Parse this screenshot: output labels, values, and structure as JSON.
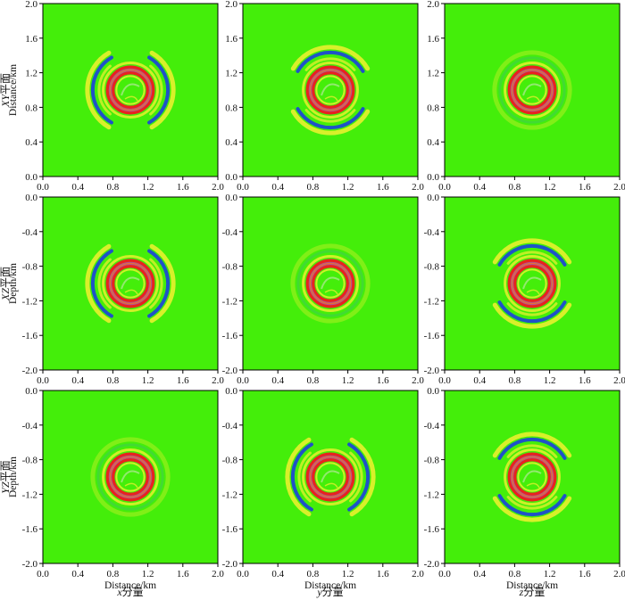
{
  "figure": {
    "row_labels": [
      {
        "italic": "XY",
        "rest": "平面"
      },
      {
        "italic": "XZ",
        "rest": "平面"
      },
      {
        "italic": "YZ",
        "rest": "平面"
      }
    ],
    "column_labels": [
      {
        "italic": "x",
        "rest": "分量"
      },
      {
        "italic": "y",
        "rest": "分量"
      },
      {
        "italic": "z",
        "rest": "分量"
      }
    ]
  },
  "colors": {
    "background": "#44ee0a",
    "red": "#e8231f",
    "blue": "#1f52c8",
    "yellow": "#f2f030",
    "orange": "#f07a1c",
    "violet": "#9a6fc6"
  },
  "chart_data": [
    {
      "type": "heatmap",
      "row": 0,
      "col": 0,
      "plane": "XY",
      "component": "x",
      "xlabel": "",
      "ylabel": "Distance/km",
      "xlim": [
        0,
        2
      ],
      "ylim": [
        0,
        2
      ],
      "xticks": [
        "0.0",
        "0.4",
        "0.8",
        "1.2",
        "1.6",
        "2.0"
      ],
      "yticks": [
        "0.0",
        "0.4",
        "0.8",
        "1.2",
        "1.6",
        "2.0"
      ],
      "center_km": [
        1.0,
        1.0
      ],
      "inner_ring_radius_km": [
        0.18,
        0.28
      ],
      "outer_wavefront_radius_km": 0.43,
      "outer_wavefront_lobes": "left-right"
    },
    {
      "type": "heatmap",
      "row": 0,
      "col": 1,
      "plane": "XY",
      "component": "y",
      "xlabel": "",
      "ylabel": "",
      "xlim": [
        0,
        2
      ],
      "ylim": [
        0,
        2
      ],
      "xticks": [
        "0.0",
        "0.4",
        "0.8",
        "1.2",
        "1.6",
        "2.0"
      ],
      "yticks": [
        "0.0",
        "0.4",
        "0.8",
        "1.2",
        "1.6",
        "2.0"
      ],
      "center_km": [
        1.0,
        1.0
      ],
      "inner_ring_radius_km": [
        0.18,
        0.28
      ],
      "outer_wavefront_radius_km": 0.43,
      "outer_wavefront_lobes": "top-bottom"
    },
    {
      "type": "heatmap",
      "row": 0,
      "col": 2,
      "plane": "XY",
      "component": "z",
      "xlabel": "",
      "ylabel": "",
      "xlim": [
        0,
        2
      ],
      "ylim": [
        0,
        2
      ],
      "xticks": [
        "0.0",
        "0.4",
        "0.8",
        "1.2",
        "1.6",
        "2.0"
      ],
      "yticks": [
        "0.0",
        "0.4",
        "0.8",
        "1.2",
        "1.6",
        "2.0"
      ],
      "center_km": [
        1.0,
        1.0
      ],
      "inner_ring_radius_km": [
        0.18,
        0.28
      ],
      "outer_wavefront_radius_km": 0.43,
      "outer_wavefront_lobes": "weak"
    },
    {
      "type": "heatmap",
      "row": 1,
      "col": 0,
      "plane": "XZ",
      "component": "x",
      "xlabel": "",
      "ylabel": "Depth/km",
      "xlim": [
        0,
        2
      ],
      "ylim": [
        -2,
        0
      ],
      "xticks": [
        "0.0",
        "0.4",
        "0.8",
        "1.2",
        "1.6",
        "2.0"
      ],
      "yticks": [
        "-2.0",
        "-1.6",
        "-1.2",
        "-0.8",
        "-0.4",
        "0.0"
      ],
      "center_km": [
        1.0,
        -1.0
      ],
      "inner_ring_radius_km": [
        0.18,
        0.28
      ],
      "outer_wavefront_radius_km": 0.43,
      "outer_wavefront_lobes": "left-right"
    },
    {
      "type": "heatmap",
      "row": 1,
      "col": 1,
      "plane": "XZ",
      "component": "y",
      "xlabel": "",
      "ylabel": "",
      "xlim": [
        0,
        2
      ],
      "ylim": [
        -2,
        0
      ],
      "xticks": [
        "0.0",
        "0.4",
        "0.8",
        "1.2",
        "1.6",
        "2.0"
      ],
      "yticks": [
        "-2.0",
        "-1.6",
        "-1.2",
        "-0.8",
        "-0.4",
        "0.0"
      ],
      "center_km": [
        1.0,
        -1.0
      ],
      "inner_ring_radius_km": [
        0.18,
        0.28
      ],
      "outer_wavefront_radius_km": 0.43,
      "outer_wavefront_lobes": "weak"
    },
    {
      "type": "heatmap",
      "row": 1,
      "col": 2,
      "plane": "XZ",
      "component": "z",
      "xlabel": "",
      "ylabel": "",
      "xlim": [
        0,
        2
      ],
      "ylim": [
        -2,
        0
      ],
      "xticks": [
        "0.0",
        "0.4",
        "0.8",
        "1.2",
        "1.6",
        "2.0"
      ],
      "yticks": [
        "-2.0",
        "-1.6",
        "-1.2",
        "-0.8",
        "-0.4",
        "0.0"
      ],
      "center_km": [
        1.0,
        -1.0
      ],
      "inner_ring_radius_km": [
        0.18,
        0.28
      ],
      "outer_wavefront_radius_km": 0.43,
      "outer_wavefront_lobes": "top-bottom"
    },
    {
      "type": "heatmap",
      "row": 2,
      "col": 0,
      "plane": "YZ",
      "component": "x",
      "xlabel": "Distance/km",
      "ylabel": "Depth/km",
      "xlim": [
        0,
        2
      ],
      "ylim": [
        -2,
        0
      ],
      "xticks": [
        "0.0",
        "0.4",
        "0.8",
        "1.2",
        "1.6",
        "2.0"
      ],
      "yticks": [
        "-2.0",
        "-1.6",
        "-1.2",
        "-0.8",
        "-0.4",
        "0.0"
      ],
      "center_km": [
        1.0,
        -1.0
      ],
      "inner_ring_radius_km": [
        0.18,
        0.28
      ],
      "outer_wavefront_radius_km": 0.43,
      "outer_wavefront_lobes": "weak"
    },
    {
      "type": "heatmap",
      "row": 2,
      "col": 1,
      "plane": "YZ",
      "component": "y",
      "xlabel": "Distance/km",
      "ylabel": "",
      "xlim": [
        0,
        2
      ],
      "ylim": [
        -2,
        0
      ],
      "xticks": [
        "0.0",
        "0.4",
        "0.8",
        "1.2",
        "1.6",
        "2.0"
      ],
      "yticks": [
        "-2.0",
        "-1.6",
        "-1.2",
        "-0.8",
        "-0.4",
        "0.0"
      ],
      "center_km": [
        1.0,
        -1.0
      ],
      "inner_ring_radius_km": [
        0.18,
        0.28
      ],
      "outer_wavefront_radius_km": 0.43,
      "outer_wavefront_lobes": "left-right"
    },
    {
      "type": "heatmap",
      "row": 2,
      "col": 2,
      "plane": "YZ",
      "component": "z",
      "xlabel": "Distance/km",
      "ylabel": "",
      "xlim": [
        0,
        2
      ],
      "ylim": [
        -2,
        0
      ],
      "xticks": [
        "0.0",
        "0.4",
        "0.8",
        "1.2",
        "1.6",
        "2.0"
      ],
      "yticks": [
        "-2.0",
        "-1.6",
        "-1.2",
        "-0.8",
        "-0.4",
        "0.0"
      ],
      "center_km": [
        1.0,
        -1.0
      ],
      "inner_ring_radius_km": [
        0.18,
        0.28
      ],
      "outer_wavefront_radius_km": 0.43,
      "outer_wavefront_lobes": "top-bottom"
    }
  ]
}
